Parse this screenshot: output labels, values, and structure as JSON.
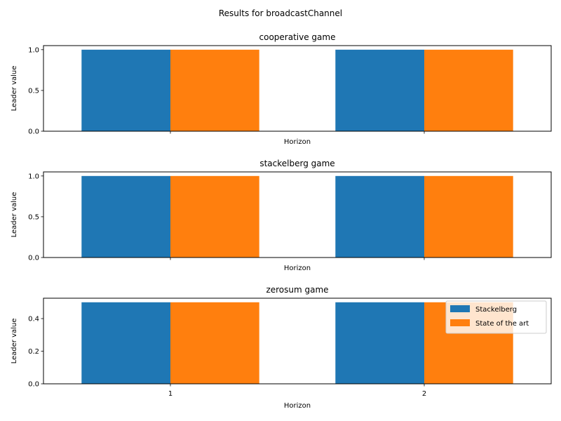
{
  "figure": {
    "suptitle": "Results for broadcastChannel"
  },
  "colors": {
    "Stackelberg": "#1f77b4",
    "State of the art": "#ff7f0e"
  },
  "chart_data": [
    {
      "type": "bar",
      "title": "cooperative game",
      "xlabel": "Horizon",
      "ylabel": "Leader value",
      "categories": [
        "1",
        "2"
      ],
      "show_xtick_labels": false,
      "ylim": [
        0,
        1.05
      ],
      "yticks": [
        "0.0",
        "0.5",
        "1.0"
      ],
      "series": [
        {
          "name": "Stackelberg",
          "values": [
            1.0,
            1.0
          ]
        },
        {
          "name": "State of the art",
          "values": [
            1.0,
            1.0
          ]
        }
      ],
      "legend": null
    },
    {
      "type": "bar",
      "title": "stackelberg game",
      "xlabel": "Horizon",
      "ylabel": "Leader value",
      "categories": [
        "1",
        "2"
      ],
      "show_xtick_labels": false,
      "ylim": [
        0,
        1.05
      ],
      "yticks": [
        "0.0",
        "0.5",
        "1.0"
      ],
      "series": [
        {
          "name": "Stackelberg",
          "values": [
            1.0,
            1.0
          ]
        },
        {
          "name": "State of the art",
          "values": [
            1.0,
            1.0
          ]
        }
      ],
      "legend": null
    },
    {
      "type": "bar",
      "title": "zerosum game",
      "xlabel": "Horizon",
      "ylabel": "Leader value",
      "categories": [
        "1",
        "2"
      ],
      "show_xtick_labels": true,
      "ylim": [
        0,
        0.525
      ],
      "yticks": [
        "0.0",
        "0.2",
        "0.4"
      ],
      "series": [
        {
          "name": "Stackelberg",
          "values": [
            0.5,
            0.5
          ]
        },
        {
          "name": "State of the art",
          "values": [
            0.5,
            0.5
          ]
        }
      ],
      "legend": "upper right"
    }
  ]
}
